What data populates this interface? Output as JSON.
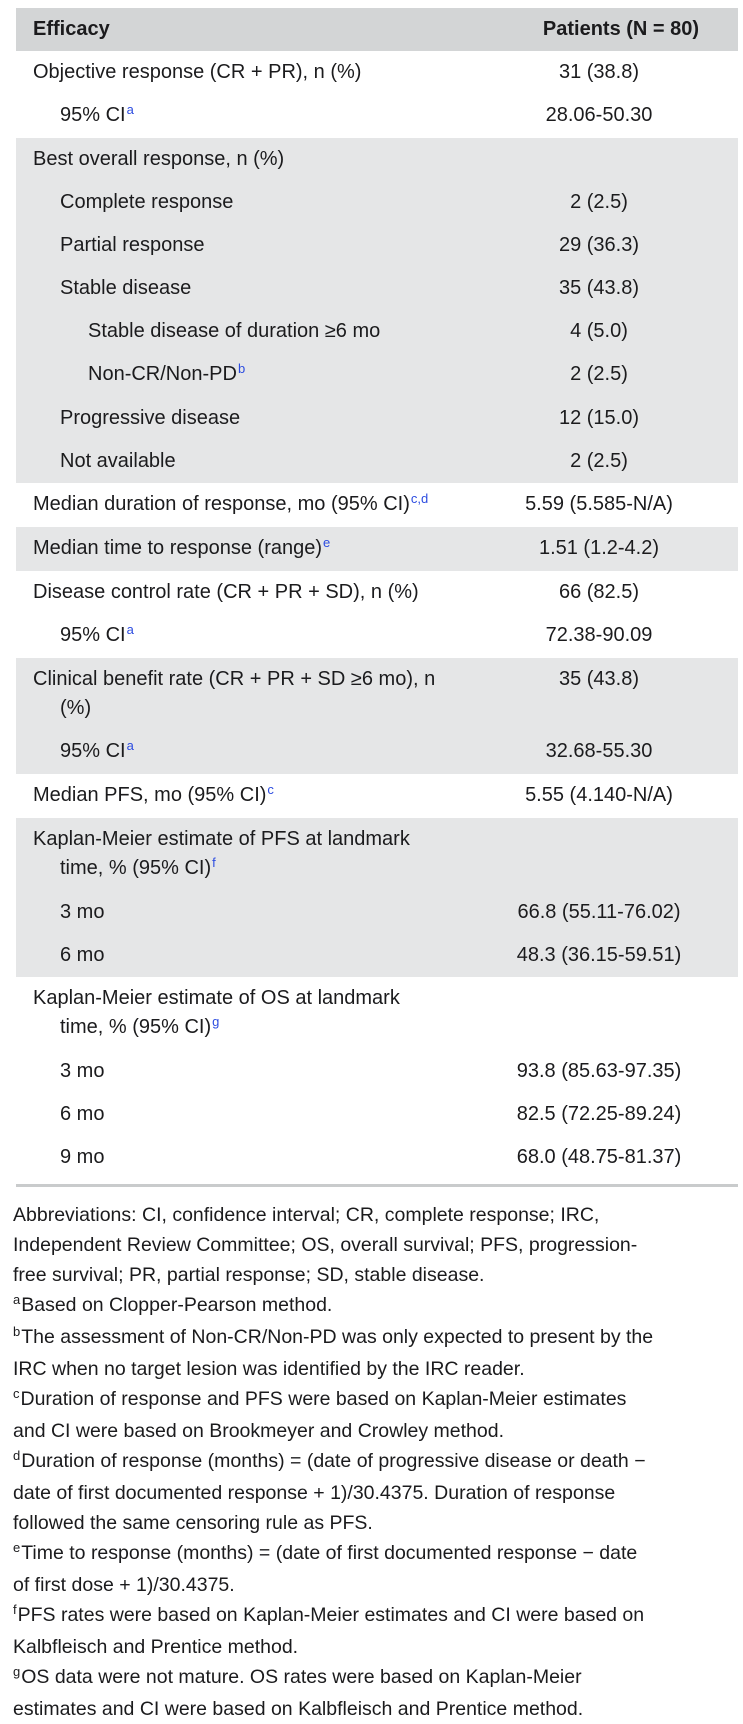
{
  "colors": {
    "header_bg": "#d3d5d6",
    "stripe_bg": "#e5e6e7",
    "text": "#1b1b1d",
    "link_blue": "#2c4ce0",
    "rule": "#c9cbcc"
  },
  "table": {
    "header": {
      "col1": "Efficacy",
      "col2": "Patients (N = 80)"
    },
    "groups": [
      {
        "shade": "white",
        "rows": [
          {
            "indent": 0,
            "lines": [
              {
                "text": "Objective response (CR + PR), n (%)"
              }
            ],
            "value": "31 (38.8)"
          },
          {
            "indent": 1,
            "lines": [
              {
                "text": "95% CI",
                "sup": "a"
              }
            ],
            "value": "28.06-50.30"
          }
        ]
      },
      {
        "shade": "gray",
        "rows": [
          {
            "indent": 0,
            "lines": [
              {
                "text": "Best overall response, n (%)"
              }
            ],
            "value": ""
          },
          {
            "indent": 1,
            "lines": [
              {
                "text": "Complete response"
              }
            ],
            "value": "2 (2.5)"
          },
          {
            "indent": 1,
            "lines": [
              {
                "text": "Partial response"
              }
            ],
            "value": "29 (36.3)"
          },
          {
            "indent": 1,
            "lines": [
              {
                "text": "Stable disease"
              }
            ],
            "value": "35 (43.8)"
          },
          {
            "indent": 2,
            "lines": [
              {
                "text": "Stable disease of duration ≥6 mo"
              }
            ],
            "value": "4 (5.0)"
          },
          {
            "indent": 2,
            "lines": [
              {
                "text": "Non-CR/Non-PD",
                "sup": "b"
              }
            ],
            "value": "2 (2.5)"
          },
          {
            "indent": 1,
            "lines": [
              {
                "text": "Progressive disease"
              }
            ],
            "value": "12 (15.0)"
          },
          {
            "indent": 1,
            "lines": [
              {
                "text": "Not available"
              }
            ],
            "value": "2 (2.5)"
          }
        ]
      },
      {
        "shade": "white",
        "rows": [
          {
            "indent": 0,
            "lines": [
              {
                "text": "Median duration of response, mo (95% CI)",
                "sup": "c,d"
              }
            ],
            "value": "5.59 (5.585-N/A)"
          }
        ]
      },
      {
        "shade": "gray",
        "rows": [
          {
            "indent": 0,
            "lines": [
              {
                "text": "Median time to response (range)",
                "sup": "e"
              }
            ],
            "value": "1.51 (1.2-4.2)"
          }
        ]
      },
      {
        "shade": "white",
        "rows": [
          {
            "indent": 0,
            "lines": [
              {
                "text": "Disease control rate (CR + PR + SD), n (%)"
              }
            ],
            "value": "66 (82.5)"
          },
          {
            "indent": 1,
            "lines": [
              {
                "text": "95% CI",
                "sup": "a"
              }
            ],
            "value": "72.38-90.09"
          }
        ]
      },
      {
        "shade": "gray",
        "rows": [
          {
            "indent": 0,
            "lines": [
              {
                "text": "Clinical benefit rate (CR + PR + SD ≥6 mo), n"
              },
              {
                "text": "(%)"
              }
            ],
            "value": "35 (43.8)"
          },
          {
            "indent": 1,
            "lines": [
              {
                "text": "95% CI",
                "sup": "a"
              }
            ],
            "value": "32.68-55.30"
          }
        ]
      },
      {
        "shade": "white",
        "rows": [
          {
            "indent": 0,
            "lines": [
              {
                "text": "Median PFS, mo (95% CI)",
                "sup": "c"
              }
            ],
            "value": "5.55 (4.140-N/A)"
          }
        ]
      },
      {
        "shade": "gray",
        "rows": [
          {
            "indent": 0,
            "lines": [
              {
                "text": "Kaplan-Meier estimate of PFS at landmark"
              },
              {
                "text": "time, % (95% CI)",
                "sup": "f"
              }
            ],
            "value": ""
          },
          {
            "indent": 1,
            "lines": [
              {
                "text": "3 mo"
              }
            ],
            "value": "66.8 (55.11-76.02)"
          },
          {
            "indent": 1,
            "lines": [
              {
                "text": "6 mo"
              }
            ],
            "value": "48.3 (36.15-59.51)"
          }
        ]
      },
      {
        "shade": "white",
        "rows": [
          {
            "indent": 0,
            "lines": [
              {
                "text": "Kaplan-Meier estimate of OS at landmark"
              },
              {
                "text": "time, % (95% CI)",
                "sup": "g"
              }
            ],
            "value": ""
          },
          {
            "indent": 1,
            "lines": [
              {
                "text": "3 mo"
              }
            ],
            "value": "93.8 (85.63-97.35)"
          },
          {
            "indent": 1,
            "lines": [
              {
                "text": "6 mo"
              }
            ],
            "value": "82.5 (72.25-89.24)"
          },
          {
            "indent": 1,
            "lines": [
              {
                "text": "9 mo"
              }
            ],
            "value": "68.0 (48.75-81.37)"
          }
        ]
      }
    ]
  },
  "footnotes": {
    "lines": [
      {
        "sup": "",
        "text": "Abbreviations: CI, confidence interval; CR, complete response; IRC,"
      },
      {
        "sup": "",
        "text": "Independent Review Committee; OS, overall survival; PFS, progression-"
      },
      {
        "sup": "",
        "text": "free survival; PR, partial response; SD, stable disease."
      },
      {
        "sup": "a",
        "text": "Based on Clopper-Pearson method."
      },
      {
        "sup": "b",
        "text": "The assessment of Non-CR/Non-PD was only expected to present by the"
      },
      {
        "sup": "",
        "text": "IRC when no target lesion was identified by the IRC reader."
      },
      {
        "sup": "c",
        "text": "Duration of response and PFS were based on Kaplan-Meier estimates"
      },
      {
        "sup": "",
        "text": "and CI were based on Brookmeyer and Crowley method."
      },
      {
        "sup": "d",
        "text": "Duration of response (months) = (date of progressive disease or death −"
      },
      {
        "sup": "",
        "text": "date of first documented response + 1)/30.4375. Duration of response"
      },
      {
        "sup": "",
        "text": "followed the same censoring rule as PFS."
      },
      {
        "sup": "e",
        "text": "Time to response (months) = (date of first documented response − date"
      },
      {
        "sup": "",
        "text": "of first dose + 1)/30.4375."
      },
      {
        "sup": "f",
        "text": "PFS rates were based on Kaplan-Meier estimates and CI were based on"
      },
      {
        "sup": "",
        "text": "Kalbfleisch and Prentice method."
      },
      {
        "sup": "g",
        "text": "OS data were not mature. OS rates were based on Kaplan-Meier"
      },
      {
        "sup": "",
        "text": "estimates and CI were based on Kalbfleisch and Prentice method."
      }
    ]
  }
}
